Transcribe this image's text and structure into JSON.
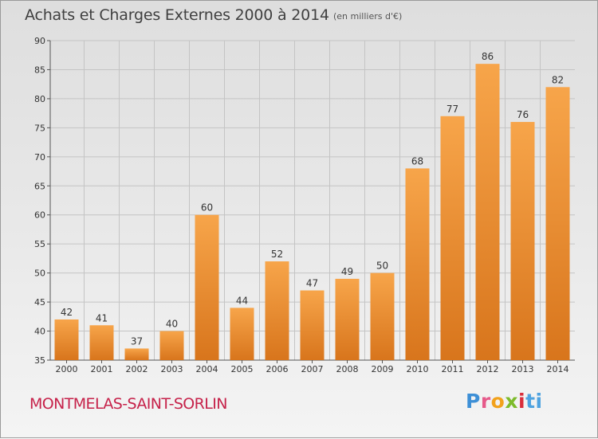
{
  "header": {
    "title": "Achats et Charges Externes 2000 à 2014",
    "unit": "(en milliers d'€)"
  },
  "footer": {
    "place": "MONTMELAS-SAINT-SORLIN",
    "logo": [
      "P",
      "r",
      "o",
      "x",
      "i",
      "ti"
    ]
  },
  "colors": {
    "bar_light": "#f7a54a",
    "bar_dark": "#d8751c",
    "place": "#c6224a"
  },
  "chart_data": {
    "type": "bar",
    "title": "Achats et Charges Externes 2000 à 2014",
    "subtitle": "(en milliers d'€)",
    "categories": [
      "2000",
      "2001",
      "2002",
      "2003",
      "2004",
      "2005",
      "2006",
      "2007",
      "2008",
      "2009",
      "2010",
      "2011",
      "2012",
      "2013",
      "2014"
    ],
    "values": [
      42,
      41,
      37,
      40,
      60,
      44,
      52,
      47,
      49,
      50,
      68,
      77,
      86,
      76,
      82
    ],
    "data_labels": [
      "42",
      "41",
      "37",
      "40",
      "60",
      "44",
      "52",
      "47",
      "49",
      "50",
      "68",
      "77",
      "86",
      "76",
      "82"
    ],
    "yticks": [
      35,
      40,
      45,
      50,
      55,
      60,
      65,
      70,
      75,
      80,
      85,
      90
    ],
    "ylim": [
      35,
      90
    ],
    "xlabel": "",
    "ylabel": "",
    "grid": true,
    "legend": "none"
  }
}
